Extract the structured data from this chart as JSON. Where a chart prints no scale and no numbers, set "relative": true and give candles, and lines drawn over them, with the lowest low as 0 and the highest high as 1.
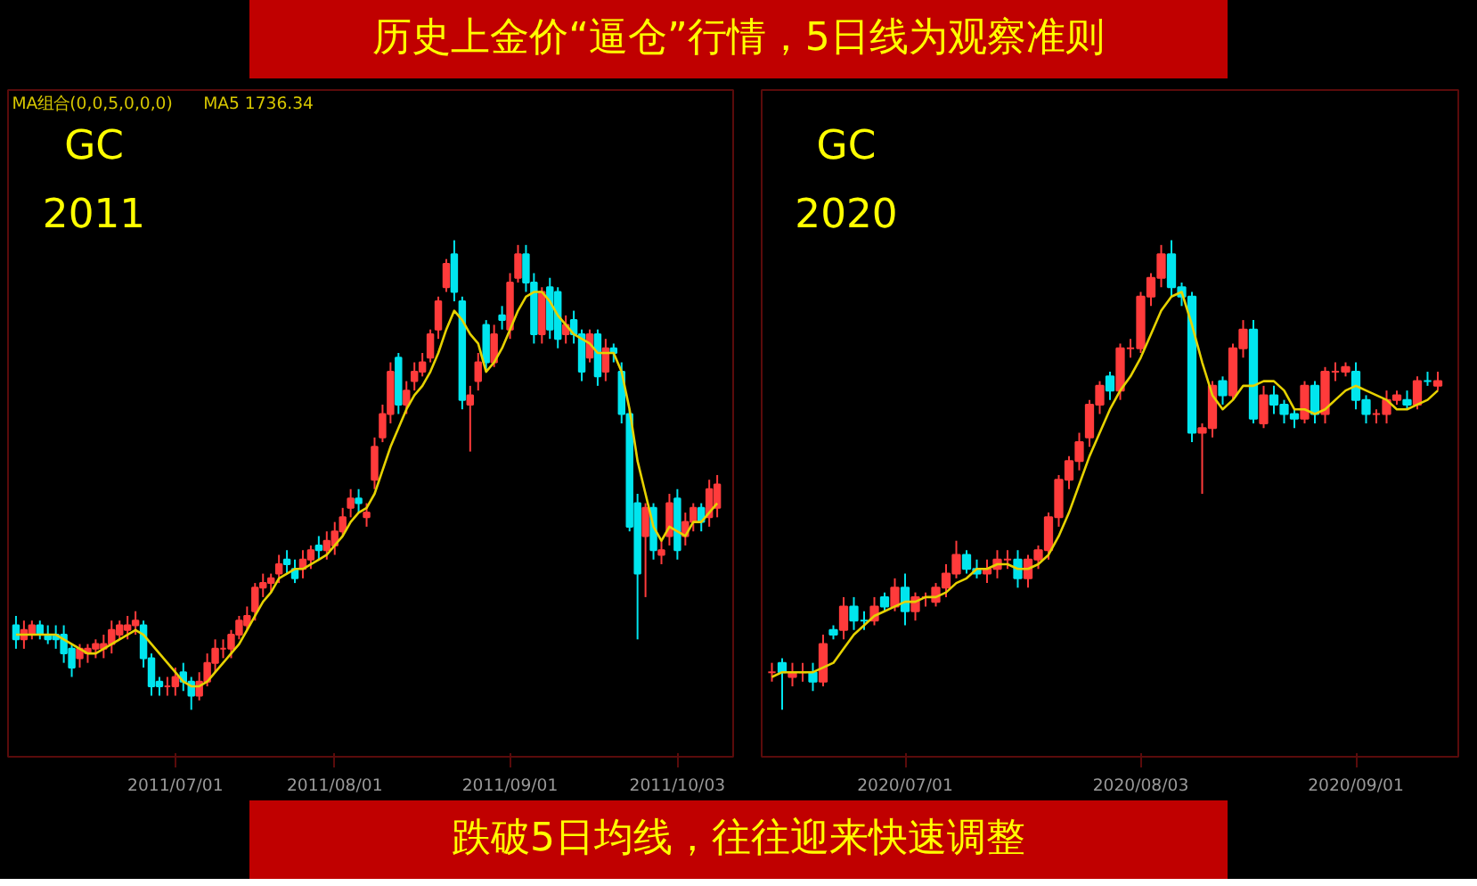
{
  "chart_data": [
    {
      "type": "candlestick",
      "relative": true,
      "title": "历史上金价“逼仓”行情，5日线为观察准则",
      "annotations": [
        "GC",
        "2011",
        "MA组合(0,0,5,0,0,0)",
        "MA5 1736.34"
      ],
      "categories": [
        null,
        null,
        null,
        null,
        null,
        null,
        null,
        null,
        null,
        null,
        null,
        null,
        null,
        null,
        null,
        null,
        null,
        null,
        null,
        null,
        "2011/07/01",
        null,
        null,
        null,
        null,
        null,
        null,
        null,
        null,
        null,
        null,
        null,
        null,
        null,
        null,
        null,
        null,
        null,
        null,
        null,
        "2011/08/01",
        null,
        null,
        null,
        null,
        null,
        null,
        null,
        null,
        null,
        null,
        null,
        null,
        null,
        null,
        null,
        null,
        null,
        null,
        null,
        null,
        null,
        "2011/09/01",
        null,
        null,
        null,
        null,
        null,
        null,
        null,
        null,
        null,
        null,
        null,
        null,
        null,
        null,
        null,
        null,
        null,
        null,
        null,
        null,
        "2011/10/03",
        null,
        null,
        null,
        null,
        null
      ],
      "ohlc": [
        [
          0.18,
          0.2,
          0.13,
          0.15
        ],
        [
          0.15,
          0.19,
          0.13,
          0.17
        ],
        [
          0.16,
          0.19,
          0.15,
          0.18
        ],
        [
          0.18,
          0.19,
          0.15,
          0.16
        ],
        [
          0.16,
          0.18,
          0.14,
          0.15
        ],
        [
          0.16,
          0.18,
          0.13,
          0.15
        ],
        [
          0.16,
          0.18,
          0.1,
          0.12
        ],
        [
          0.13,
          0.14,
          0.07,
          0.09
        ],
        [
          0.11,
          0.14,
          0.09,
          0.13
        ],
        [
          0.12,
          0.14,
          0.1,
          0.13
        ],
        [
          0.13,
          0.15,
          0.11,
          0.14
        ],
        [
          0.13,
          0.16,
          0.11,
          0.14
        ],
        [
          0.14,
          0.19,
          0.12,
          0.17
        ],
        [
          0.16,
          0.19,
          0.15,
          0.18
        ],
        [
          0.17,
          0.2,
          0.15,
          0.18
        ],
        [
          0.18,
          0.21,
          0.16,
          0.19
        ],
        [
          0.18,
          0.19,
          0.09,
          0.11
        ],
        [
          0.11,
          0.12,
          0.03,
          0.05
        ],
        [
          0.06,
          0.07,
          0.03,
          0.05
        ],
        [
          0.05,
          0.07,
          0.03,
          0.05
        ],
        [
          0.05,
          0.09,
          0.03,
          0.07
        ],
        [
          0.08,
          0.1,
          0.04,
          0.06
        ],
        [
          0.06,
          0.07,
          0.0,
          0.03
        ],
        [
          0.03,
          0.08,
          0.02,
          0.06
        ],
        [
          0.06,
          0.12,
          0.05,
          0.1
        ],
        [
          0.1,
          0.15,
          0.08,
          0.13
        ],
        [
          0.13,
          0.15,
          0.11,
          0.13
        ],
        [
          0.13,
          0.17,
          0.11,
          0.16
        ],
        [
          0.16,
          0.2,
          0.15,
          0.19
        ],
        [
          0.18,
          0.22,
          0.17,
          0.2
        ],
        [
          0.21,
          0.27,
          0.19,
          0.26
        ],
        [
          0.26,
          0.29,
          0.24,
          0.27
        ],
        [
          0.27,
          0.29,
          0.25,
          0.28
        ],
        [
          0.29,
          0.33,
          0.27,
          0.31
        ],
        [
          0.32,
          0.34,
          0.29,
          0.31
        ],
        [
          0.3,
          0.32,
          0.27,
          0.28
        ],
        [
          0.3,
          0.34,
          0.28,
          0.32
        ],
        [
          0.32,
          0.35,
          0.3,
          0.34
        ],
        [
          0.35,
          0.37,
          0.32,
          0.34
        ],
        [
          0.34,
          0.38,
          0.32,
          0.36
        ],
        [
          0.35,
          0.4,
          0.33,
          0.38
        ],
        [
          0.38,
          0.43,
          0.37,
          0.41
        ],
        [
          0.43,
          0.47,
          0.41,
          0.45
        ],
        [
          0.45,
          0.47,
          0.42,
          0.44
        ],
        [
          0.41,
          0.44,
          0.39,
          0.42
        ],
        [
          0.49,
          0.58,
          0.47,
          0.56
        ],
        [
          0.58,
          0.65,
          0.57,
          0.63
        ],
        [
          0.63,
          0.74,
          0.61,
          0.72
        ],
        [
          0.75,
          0.76,
          0.63,
          0.65
        ],
        [
          0.65,
          0.7,
          0.63,
          0.68
        ],
        [
          0.7,
          0.74,
          0.68,
          0.72
        ],
        [
          0.72,
          0.76,
          0.71,
          0.74
        ],
        [
          0.75,
          0.81,
          0.74,
          0.8
        ],
        [
          0.81,
          0.88,
          0.79,
          0.87
        ],
        [
          0.9,
          0.96,
          0.89,
          0.95
        ],
        [
          0.97,
          1.0,
          0.87,
          0.89
        ],
        [
          0.87,
          0.88,
          0.64,
          0.66
        ],
        [
          0.65,
          0.69,
          0.55,
          0.67
        ],
        [
          0.7,
          0.76,
          0.68,
          0.74
        ],
        [
          0.82,
          0.83,
          0.72,
          0.74
        ],
        [
          0.74,
          0.82,
          0.73,
          0.8
        ],
        [
          0.84,
          0.86,
          0.81,
          0.83
        ],
        [
          0.81,
          0.93,
          0.79,
          0.91
        ],
        [
          0.92,
          0.99,
          0.91,
          0.97
        ],
        [
          0.97,
          0.99,
          0.89,
          0.91
        ],
        [
          0.91,
          0.93,
          0.78,
          0.8
        ],
        [
          0.8,
          0.9,
          0.78,
          0.89
        ],
        [
          0.9,
          0.92,
          0.79,
          0.81
        ],
        [
          0.89,
          0.9,
          0.77,
          0.79
        ],
        [
          0.8,
          0.84,
          0.78,
          0.82
        ],
        [
          0.83,
          0.85,
          0.78,
          0.8
        ],
        [
          0.8,
          0.81,
          0.7,
          0.72
        ],
        [
          0.75,
          0.81,
          0.74,
          0.8
        ],
        [
          0.8,
          0.81,
          0.69,
          0.71
        ],
        [
          0.72,
          0.79,
          0.7,
          0.77
        ],
        [
          0.77,
          0.78,
          0.74,
          0.76
        ],
        [
          0.72,
          0.74,
          0.61,
          0.63
        ],
        [
          0.63,
          0.64,
          0.38,
          0.39
        ],
        [
          0.44,
          0.46,
          0.15,
          0.29
        ],
        [
          0.37,
          0.44,
          0.24,
          0.43
        ],
        [
          0.43,
          0.44,
          0.32,
          0.34
        ],
        [
          0.33,
          0.36,
          0.31,
          0.34
        ],
        [
          0.37,
          0.46,
          0.35,
          0.44
        ],
        [
          0.45,
          0.47,
          0.32,
          0.34
        ],
        [
          0.37,
          0.42,
          0.35,
          0.4
        ],
        [
          0.4,
          0.44,
          0.38,
          0.43
        ],
        [
          0.43,
          0.44,
          0.38,
          0.4
        ],
        [
          0.41,
          0.49,
          0.39,
          0.47
        ],
        [
          0.43,
          0.5,
          0.41,
          0.48
        ]
      ],
      "colors": [
        "#00e5ee",
        "#ff3b3b",
        "#ff3b3b",
        "#00e5ee",
        "#00e5ee",
        "#00e5ee",
        "#00e5ee",
        "#00e5ee",
        "#ff3b3b",
        "#ff3b3b",
        "#ff3b3b",
        "#ff3b3b",
        "#ff3b3b",
        "#ff3b3b",
        "#ff3b3b",
        "#ff3b3b",
        "#00e5ee",
        "#00e5ee",
        "#00e5ee",
        "#ff3b3b",
        "#ff3b3b",
        "#00e5ee",
        "#00e5ee",
        "#ff3b3b",
        "#ff3b3b",
        "#ff3b3b",
        "#ff3b3b",
        "#ff3b3b",
        "#ff3b3b",
        "#ff3b3b",
        "#ff3b3b",
        "#ff3b3b",
        "#ff3b3b",
        "#ff3b3b",
        "#00e5ee",
        "#00e5ee",
        "#ff3b3b",
        "#ff3b3b",
        "#00e5ee",
        "#ff3b3b",
        "#ff3b3b",
        "#ff3b3b",
        "#ff3b3b",
        "#00e5ee",
        "#ff3b3b",
        "#ff3b3b",
        "#ff3b3b",
        "#ff3b3b",
        "#00e5ee",
        "#ff3b3b",
        "#ff3b3b",
        "#ff3b3b",
        "#ff3b3b",
        "#ff3b3b",
        "#ff3b3b",
        "#00e5ee",
        "#00e5ee",
        "#ff3b3b",
        "#ff3b3b",
        "#00e5ee",
        "#ff3b3b",
        "#00e5ee",
        "#ff3b3b",
        "#ff3b3b",
        "#00e5ee",
        "#00e5ee",
        "#ff3b3b",
        "#00e5ee",
        "#00e5ee",
        "#ff3b3b",
        "#00e5ee",
        "#00e5ee",
        "#ff3b3b",
        "#00e5ee",
        "#ff3b3b",
        "#00e5ee",
        "#00e5ee",
        "#00e5ee",
        "#00e5ee",
        "#ff3b3b",
        "#00e5ee",
        "#ff3b3b",
        "#ff3b3b",
        "#00e5ee",
        "#ff3b3b",
        "#ff3b3b",
        "#00e5ee",
        "#ff3b3b",
        "#ff3b3b"
      ],
      "series": [
        {
          "type": "line",
          "color": "#e6d200",
          "values": [
            0.16,
            0.16,
            0.16,
            0.16,
            0.16,
            0.16,
            0.15,
            0.14,
            0.13,
            0.12,
            0.12,
            0.13,
            0.14,
            0.15,
            0.16,
            0.17,
            0.16,
            0.14,
            0.12,
            0.1,
            0.08,
            0.06,
            0.05,
            0.05,
            0.06,
            0.08,
            0.1,
            0.12,
            0.14,
            0.17,
            0.2,
            0.23,
            0.25,
            0.28,
            0.29,
            0.3,
            0.3,
            0.31,
            0.32,
            0.33,
            0.35,
            0.37,
            0.4,
            0.42,
            0.43,
            0.46,
            0.51,
            0.56,
            0.6,
            0.64,
            0.67,
            0.69,
            0.72,
            0.76,
            0.81,
            0.85,
            0.83,
            0.8,
            0.78,
            0.72,
            0.74,
            0.77,
            0.81,
            0.85,
            0.88,
            0.89,
            0.89,
            0.87,
            0.84,
            0.82,
            0.8,
            0.79,
            0.78,
            0.76,
            0.76,
            0.76,
            0.72,
            0.64,
            0.53,
            0.46,
            0.39,
            0.36,
            0.39,
            0.38,
            0.37,
            0.4,
            0.4,
            0.42,
            0.44
          ]
        }
      ]
    },
    {
      "type": "candlestick",
      "relative": true,
      "annotations": [
        "GC",
        "2020",
        "跌破5日均线，往往迎来快速调整"
      ],
      "categories": [
        null,
        null,
        null,
        null,
        null,
        null,
        null,
        null,
        null,
        null,
        null,
        null,
        null,
        "2020/07/01",
        null,
        null,
        null,
        null,
        null,
        null,
        null,
        null,
        null,
        null,
        null,
        null,
        null,
        null,
        null,
        null,
        null,
        null,
        null,
        null,
        null,
        null,
        "2020/08/03",
        null,
        null,
        null,
        null,
        null,
        null,
        null,
        null,
        null,
        null,
        null,
        null,
        null,
        null,
        null,
        null,
        null,
        null,
        null,
        null,
        "2020/09/01",
        null,
        null,
        null,
        null,
        null,
        null,
        null,
        null
      ],
      "ohlc": [
        [
          0.08,
          0.1,
          0.06,
          0.08
        ],
        [
          0.1,
          0.11,
          0.0,
          0.08
        ],
        [
          0.07,
          0.1,
          0.05,
          0.08
        ],
        [
          0.08,
          0.1,
          0.06,
          0.08
        ],
        [
          0.08,
          0.1,
          0.04,
          0.06
        ],
        [
          0.06,
          0.16,
          0.05,
          0.14
        ],
        [
          0.17,
          0.18,
          0.15,
          0.16
        ],
        [
          0.17,
          0.24,
          0.15,
          0.22
        ],
        [
          0.22,
          0.24,
          0.17,
          0.19
        ],
        [
          0.19,
          0.21,
          0.17,
          0.19
        ],
        [
          0.19,
          0.24,
          0.18,
          0.22
        ],
        [
          0.24,
          0.25,
          0.21,
          0.22
        ],
        [
          0.22,
          0.28,
          0.21,
          0.26
        ],
        [
          0.26,
          0.29,
          0.18,
          0.21
        ],
        [
          0.21,
          0.25,
          0.19,
          0.24
        ],
        [
          0.24,
          0.25,
          0.22,
          0.24
        ],
        [
          0.23,
          0.27,
          0.22,
          0.26
        ],
        [
          0.26,
          0.31,
          0.24,
          0.29
        ],
        [
          0.29,
          0.36,
          0.28,
          0.33
        ],
        [
          0.33,
          0.34,
          0.29,
          0.3
        ],
        [
          0.3,
          0.32,
          0.28,
          0.29
        ],
        [
          0.29,
          0.32,
          0.27,
          0.3
        ],
        [
          0.3,
          0.34,
          0.28,
          0.32
        ],
        [
          0.32,
          0.34,
          0.3,
          0.32
        ],
        [
          0.32,
          0.34,
          0.26,
          0.28
        ],
        [
          0.28,
          0.33,
          0.26,
          0.32
        ],
        [
          0.32,
          0.35,
          0.3,
          0.34
        ],
        [
          0.34,
          0.42,
          0.32,
          0.41
        ],
        [
          0.41,
          0.5,
          0.39,
          0.49
        ],
        [
          0.49,
          0.54,
          0.47,
          0.53
        ],
        [
          0.53,
          0.59,
          0.51,
          0.57
        ],
        [
          0.58,
          0.66,
          0.56,
          0.65
        ],
        [
          0.65,
          0.7,
          0.63,
          0.69
        ],
        [
          0.71,
          0.72,
          0.66,
          0.68
        ],
        [
          0.68,
          0.78,
          0.66,
          0.77
        ],
        [
          0.77,
          0.79,
          0.75,
          0.77
        ],
        [
          0.77,
          0.89,
          0.76,
          0.88
        ],
        [
          0.88,
          0.93,
          0.86,
          0.92
        ],
        [
          0.92,
          0.99,
          0.9,
          0.97
        ],
        [
          0.97,
          1.0,
          0.88,
          0.9
        ],
        [
          0.9,
          0.91,
          0.86,
          0.88
        ],
        [
          0.88,
          0.89,
          0.57,
          0.59
        ],
        [
          0.59,
          0.61,
          0.46,
          0.6
        ],
        [
          0.6,
          0.7,
          0.58,
          0.69
        ],
        [
          0.7,
          0.71,
          0.65,
          0.67
        ],
        [
          0.67,
          0.78,
          0.66,
          0.77
        ],
        [
          0.77,
          0.83,
          0.75,
          0.81
        ],
        [
          0.81,
          0.83,
          0.61,
          0.62
        ],
        [
          0.61,
          0.69,
          0.6,
          0.67
        ],
        [
          0.67,
          0.69,
          0.63,
          0.65
        ],
        [
          0.65,
          0.66,
          0.61,
          0.63
        ],
        [
          0.63,
          0.64,
          0.6,
          0.62
        ],
        [
          0.62,
          0.7,
          0.61,
          0.69
        ],
        [
          0.69,
          0.7,
          0.61,
          0.63
        ],
        [
          0.63,
          0.73,
          0.61,
          0.72
        ],
        [
          0.72,
          0.74,
          0.7,
          0.72
        ],
        [
          0.72,
          0.74,
          0.71,
          0.73
        ],
        [
          0.72,
          0.74,
          0.64,
          0.66
        ],
        [
          0.66,
          0.67,
          0.61,
          0.63
        ],
        [
          0.63,
          0.64,
          0.61,
          0.63
        ],
        [
          0.63,
          0.68,
          0.61,
          0.66
        ],
        [
          0.66,
          0.68,
          0.65,
          0.67
        ],
        [
          0.66,
          0.68,
          0.64,
          0.65
        ],
        [
          0.65,
          0.71,
          0.64,
          0.7
        ],
        [
          0.7,
          0.72,
          0.69,
          0.7
        ],
        [
          0.69,
          0.72,
          0.68,
          0.7
        ]
      ],
      "colors": [
        "#ff3b3b",
        "#00e5ee",
        "#ff3b3b",
        "#ff3b3b",
        "#00e5ee",
        "#ff3b3b",
        "#00e5ee",
        "#ff3b3b",
        "#00e5ee",
        "#00e5ee",
        "#ff3b3b",
        "#00e5ee",
        "#ff3b3b",
        "#00e5ee",
        "#ff3b3b",
        "#ff3b3b",
        "#ff3b3b",
        "#ff3b3b",
        "#ff3b3b",
        "#00e5ee",
        "#00e5ee",
        "#ff3b3b",
        "#ff3b3b",
        "#ff3b3b",
        "#00e5ee",
        "#ff3b3b",
        "#ff3b3b",
        "#ff3b3b",
        "#ff3b3b",
        "#ff3b3b",
        "#ff3b3b",
        "#ff3b3b",
        "#ff3b3b",
        "#00e5ee",
        "#ff3b3b",
        "#ff3b3b",
        "#ff3b3b",
        "#ff3b3b",
        "#ff3b3b",
        "#00e5ee",
        "#00e5ee",
        "#00e5ee",
        "#ff3b3b",
        "#ff3b3b",
        "#00e5ee",
        "#ff3b3b",
        "#ff3b3b",
        "#00e5ee",
        "#ff3b3b",
        "#00e5ee",
        "#00e5ee",
        "#00e5ee",
        "#ff3b3b",
        "#00e5ee",
        "#ff3b3b",
        "#ff3b3b",
        "#ff3b3b",
        "#00e5ee",
        "#00e5ee",
        "#ff3b3b",
        "#ff3b3b",
        "#ff3b3b",
        "#00e5ee",
        "#ff3b3b",
        "#00e5ee",
        "#ff3b3b"
      ],
      "series": [
        {
          "type": "line",
          "color": "#e6d200",
          "values": [
            0.07,
            0.08,
            0.08,
            0.08,
            0.08,
            0.09,
            0.1,
            0.13,
            0.16,
            0.18,
            0.2,
            0.21,
            0.22,
            0.23,
            0.23,
            0.24,
            0.24,
            0.25,
            0.27,
            0.28,
            0.3,
            0.3,
            0.31,
            0.31,
            0.3,
            0.3,
            0.31,
            0.33,
            0.37,
            0.42,
            0.48,
            0.54,
            0.59,
            0.64,
            0.68,
            0.71,
            0.75,
            0.8,
            0.85,
            0.88,
            0.89,
            0.82,
            0.74,
            0.67,
            0.64,
            0.66,
            0.69,
            0.69,
            0.7,
            0.7,
            0.68,
            0.64,
            0.64,
            0.63,
            0.64,
            0.66,
            0.68,
            0.69,
            0.68,
            0.67,
            0.66,
            0.64,
            0.64,
            0.65,
            0.66,
            0.68
          ]
        }
      ]
    }
  ]
}
